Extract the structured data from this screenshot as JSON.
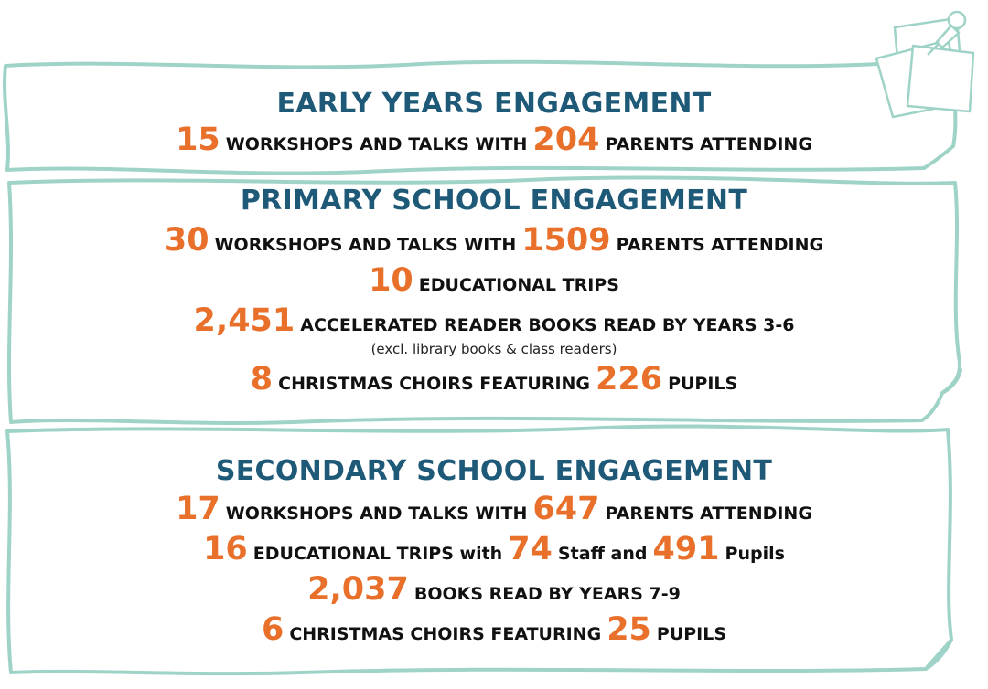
{
  "colors": {
    "heading": "#1e5a78",
    "number": "#e8702a",
    "text": "#111111",
    "frame": "#9fd3c7"
  },
  "icons": [
    "sticky-note-pin-icon"
  ],
  "early_years": {
    "title": "EARLY YEARS ENGAGEMENT",
    "line1": {
      "n1": "15",
      "t1": "WORKSHOPS AND TALKS WITH",
      "n2": "204",
      "t2": "PARENTS ATTENDING"
    }
  },
  "primary": {
    "title": "PRIMARY SCHOOL ENGAGEMENT",
    "line1": {
      "n1": "30",
      "t1": "WORKSHOPS AND TALKS WITH",
      "n2": "1509",
      "t2": "PARENTS ATTENDING"
    },
    "line2": {
      "n1": "10",
      "t1": "EDUCATIONAL TRIPS"
    },
    "line3": {
      "n1": "2,451",
      "t1": "ACCELERATED READER BOOKS READ BY YEARS 3-6",
      "note": "(excl. library books & class readers)"
    },
    "line4": {
      "n1": "8",
      "t1": "CHRISTMAS CHOIRS FEATURING",
      "n2": "226",
      "t2": "PUPILS"
    }
  },
  "secondary": {
    "title": "SECONDARY SCHOOL ENGAGEMENT",
    "line1": {
      "n1": "17",
      "t1": "WORKSHOPS AND TALKS WITH",
      "n2": "647",
      "t2": "PARENTS ATTENDING"
    },
    "line2": {
      "n1": "16",
      "t1": "EDUCATIONAL TRIPS with",
      "n2": "74",
      "t2": "Staff and",
      "n3": "491",
      "t3": "Pupils"
    },
    "line3": {
      "n1": "2,037",
      "t1": "BOOKS READ BY YEARS 7-9"
    },
    "line4": {
      "n1": "6",
      "t1": "CHRISTMAS CHOIRS FEATURING",
      "n2": "25",
      "t2": "PUPILS"
    }
  }
}
